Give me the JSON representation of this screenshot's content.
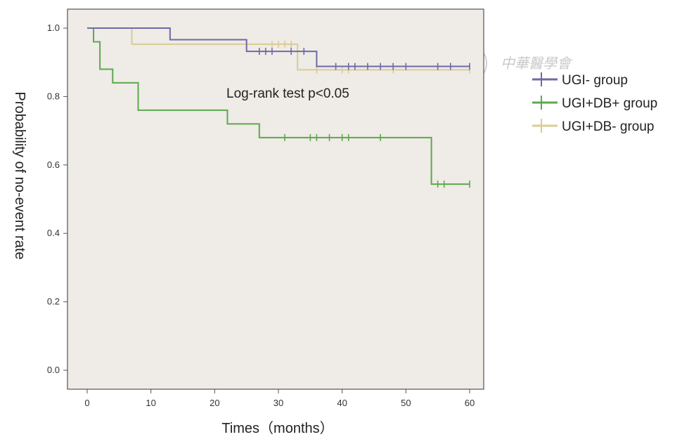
{
  "chart_data": {
    "type": "line",
    "subtype": "kaplan-meier",
    "xlabel": "Times（months）",
    "ylabel": "Probability of no-event rate",
    "xlim": [
      0,
      60
    ],
    "ylim": [
      0.0,
      1.0
    ],
    "xticks": [
      "0",
      "10",
      "20",
      "30",
      "40",
      "50",
      "60"
    ],
    "yticks": [
      "0.0",
      "0.2",
      "0.4",
      "0.6",
      "0.8",
      "1.0"
    ],
    "grid": false,
    "annotation": "Log-rank test p<0.05",
    "legend_position": "right",
    "background_color": "#efebe6",
    "series": [
      {
        "name": "UGI- group",
        "color": "#6d6aa8",
        "steps": [
          [
            0,
            1.0
          ],
          [
            13,
            0.966
          ],
          [
            25,
            0.932
          ],
          [
            36,
            0.888
          ],
          [
            60,
            0.888
          ]
        ],
        "censored": [
          [
            27,
            0.932
          ],
          [
            28,
            0.932
          ],
          [
            29,
            0.932
          ],
          [
            32,
            0.932
          ],
          [
            34,
            0.932
          ],
          [
            39,
            0.888
          ],
          [
            41,
            0.888
          ],
          [
            42,
            0.888
          ],
          [
            44,
            0.888
          ],
          [
            46,
            0.888
          ],
          [
            48,
            0.888
          ],
          [
            50,
            0.888
          ],
          [
            55,
            0.888
          ],
          [
            57,
            0.888
          ],
          [
            60,
            0.888
          ]
        ]
      },
      {
        "name": "UGI+DB+ group",
        "color": "#5da84e",
        "steps": [
          [
            0,
            1.0
          ],
          [
            1,
            0.96
          ],
          [
            2,
            0.88
          ],
          [
            4,
            0.84
          ],
          [
            8,
            0.76
          ],
          [
            22,
            0.72
          ],
          [
            27,
            0.68
          ],
          [
            54,
            0.544
          ],
          [
            60,
            0.544
          ]
        ],
        "censored": [
          [
            31,
            0.68
          ],
          [
            35,
            0.68
          ],
          [
            36,
            0.68
          ],
          [
            38,
            0.68
          ],
          [
            40,
            0.68
          ],
          [
            41,
            0.68
          ],
          [
            46,
            0.68
          ],
          [
            55,
            0.544
          ],
          [
            56,
            0.544
          ],
          [
            60,
            0.544
          ]
        ]
      },
      {
        "name": "UGI+DB- group",
        "color": "#d8cc94",
        "steps": [
          [
            0,
            1.0
          ],
          [
            7,
            0.953
          ],
          [
            33,
            0.878
          ],
          [
            60,
            0.878
          ]
        ],
        "censored": [
          [
            29,
            0.953
          ],
          [
            30,
            0.953
          ],
          [
            31,
            0.953
          ],
          [
            32,
            0.953
          ],
          [
            36,
            0.878
          ],
          [
            40,
            0.878
          ],
          [
            41,
            0.878
          ],
          [
            48,
            0.878
          ],
          [
            60,
            0.878
          ]
        ]
      }
    ]
  },
  "watermark": {
    "text": "中華醫學會",
    "color": "#c9c9c9"
  }
}
